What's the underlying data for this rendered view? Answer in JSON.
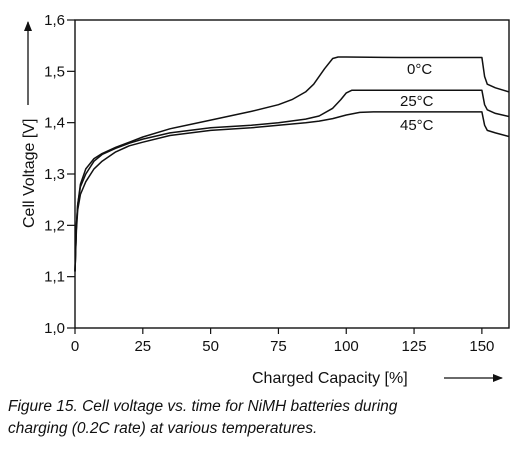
{
  "chart_data": {
    "type": "line",
    "xlabel": "Charged Capacity [%]",
    "ylabel": "Cell Voltage [V]",
    "xlim": [
      0,
      160
    ],
    "ylim": [
      1.0,
      1.6
    ],
    "xticks": [
      "0",
      "25",
      "50",
      "75",
      "100",
      "125",
      "150"
    ],
    "yticks": [
      "1,0",
      "1,1",
      "1,2",
      "1,3",
      "1,4",
      "1,5",
      "1,6"
    ],
    "grid": false,
    "series": [
      {
        "name": "0°C",
        "x": [
          0,
          0.5,
          1,
          2,
          4,
          7,
          10,
          15,
          20,
          25,
          35,
          50,
          65,
          75,
          80,
          85,
          88,
          92,
          95,
          97,
          100,
          120,
          140,
          150,
          151,
          152,
          155,
          160
        ],
        "y": [
          1.11,
          1.2,
          1.24,
          1.28,
          1.31,
          1.33,
          1.34,
          1.352,
          1.362,
          1.372,
          1.388,
          1.405,
          1.422,
          1.435,
          1.445,
          1.46,
          1.475,
          1.505,
          1.525,
          1.528,
          1.528,
          1.527,
          1.527,
          1.527,
          1.49,
          1.475,
          1.468,
          1.46
        ]
      },
      {
        "name": "25°C",
        "x": [
          0,
          0.5,
          1,
          2,
          4,
          7,
          10,
          15,
          20,
          25,
          35,
          50,
          65,
          75,
          85,
          90,
          95,
          98,
          100,
          102,
          110,
          120,
          140,
          150,
          151,
          152,
          155,
          160
        ],
        "y": [
          1.11,
          1.2,
          1.24,
          1.275,
          1.3,
          1.325,
          1.338,
          1.35,
          1.36,
          1.368,
          1.38,
          1.39,
          1.395,
          1.4,
          1.407,
          1.413,
          1.428,
          1.445,
          1.458,
          1.463,
          1.463,
          1.463,
          1.463,
          1.463,
          1.435,
          1.425,
          1.418,
          1.412
        ]
      },
      {
        "name": "45°C",
        "x": [
          0,
          0.5,
          1,
          2,
          4,
          7,
          10,
          15,
          20,
          25,
          35,
          50,
          65,
          75,
          85,
          90,
          95,
          100,
          105,
          110,
          120,
          140,
          150,
          151,
          152,
          155,
          160
        ],
        "y": [
          1.11,
          1.19,
          1.23,
          1.26,
          1.285,
          1.31,
          1.325,
          1.343,
          1.355,
          1.362,
          1.375,
          1.385,
          1.39,
          1.395,
          1.4,
          1.403,
          1.408,
          1.415,
          1.42,
          1.421,
          1.421,
          1.421,
          1.421,
          1.395,
          1.385,
          1.38,
          1.373
        ]
      }
    ],
    "annotations": [
      "0°C",
      "25°C",
      "45°C"
    ]
  },
  "caption": {
    "line1": "Figure 15. Cell voltage vs. time for NiMH batteries during",
    "line2": "charging (0.2C rate) at various temperatures."
  }
}
